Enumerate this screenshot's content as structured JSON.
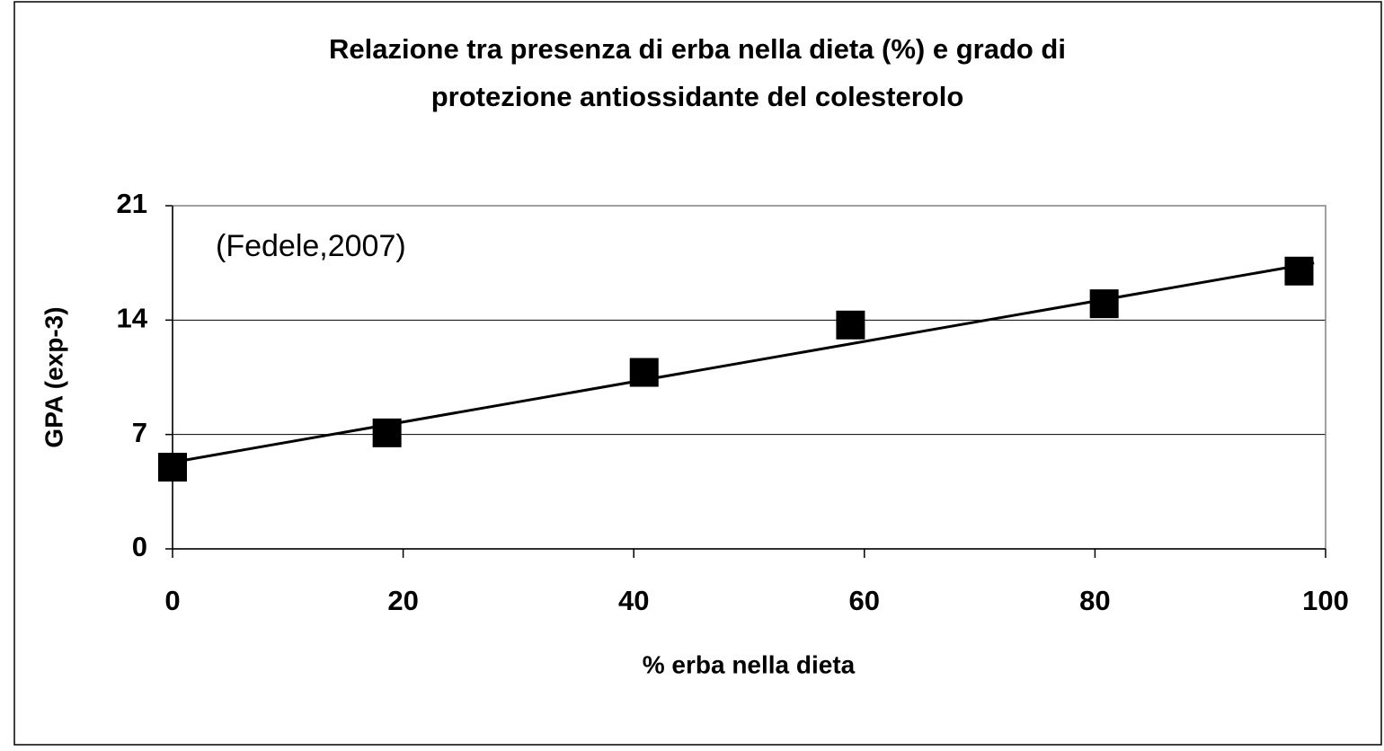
{
  "chart_data": {
    "type": "scatter",
    "title": [
      "Relazione tra presenza di erba nella dieta (%) e grado di",
      "protezione antiossidante del colesterolo"
    ],
    "x_label": "% erba nella dieta",
    "y_label": "GPA (exp-3)",
    "annotation": "(Fedele,2007)",
    "x": [
      0,
      18.6,
      40.9,
      58.8,
      80.8,
      97.7
    ],
    "values": [
      5.0,
      7.1,
      10.8,
      13.7,
      15.0,
      17.0
    ],
    "color": "#000000",
    "trendline": {
      "x": [
        0,
        99
      ],
      "values": [
        5.3,
        17.5
      ]
    },
    "xlim": [
      0,
      100
    ],
    "xticks": [
      0,
      20,
      40,
      60,
      80,
      100
    ],
    "ylim": [
      0,
      21
    ],
    "yticks": [
      0,
      7,
      14,
      21
    ],
    "grid": true
  }
}
